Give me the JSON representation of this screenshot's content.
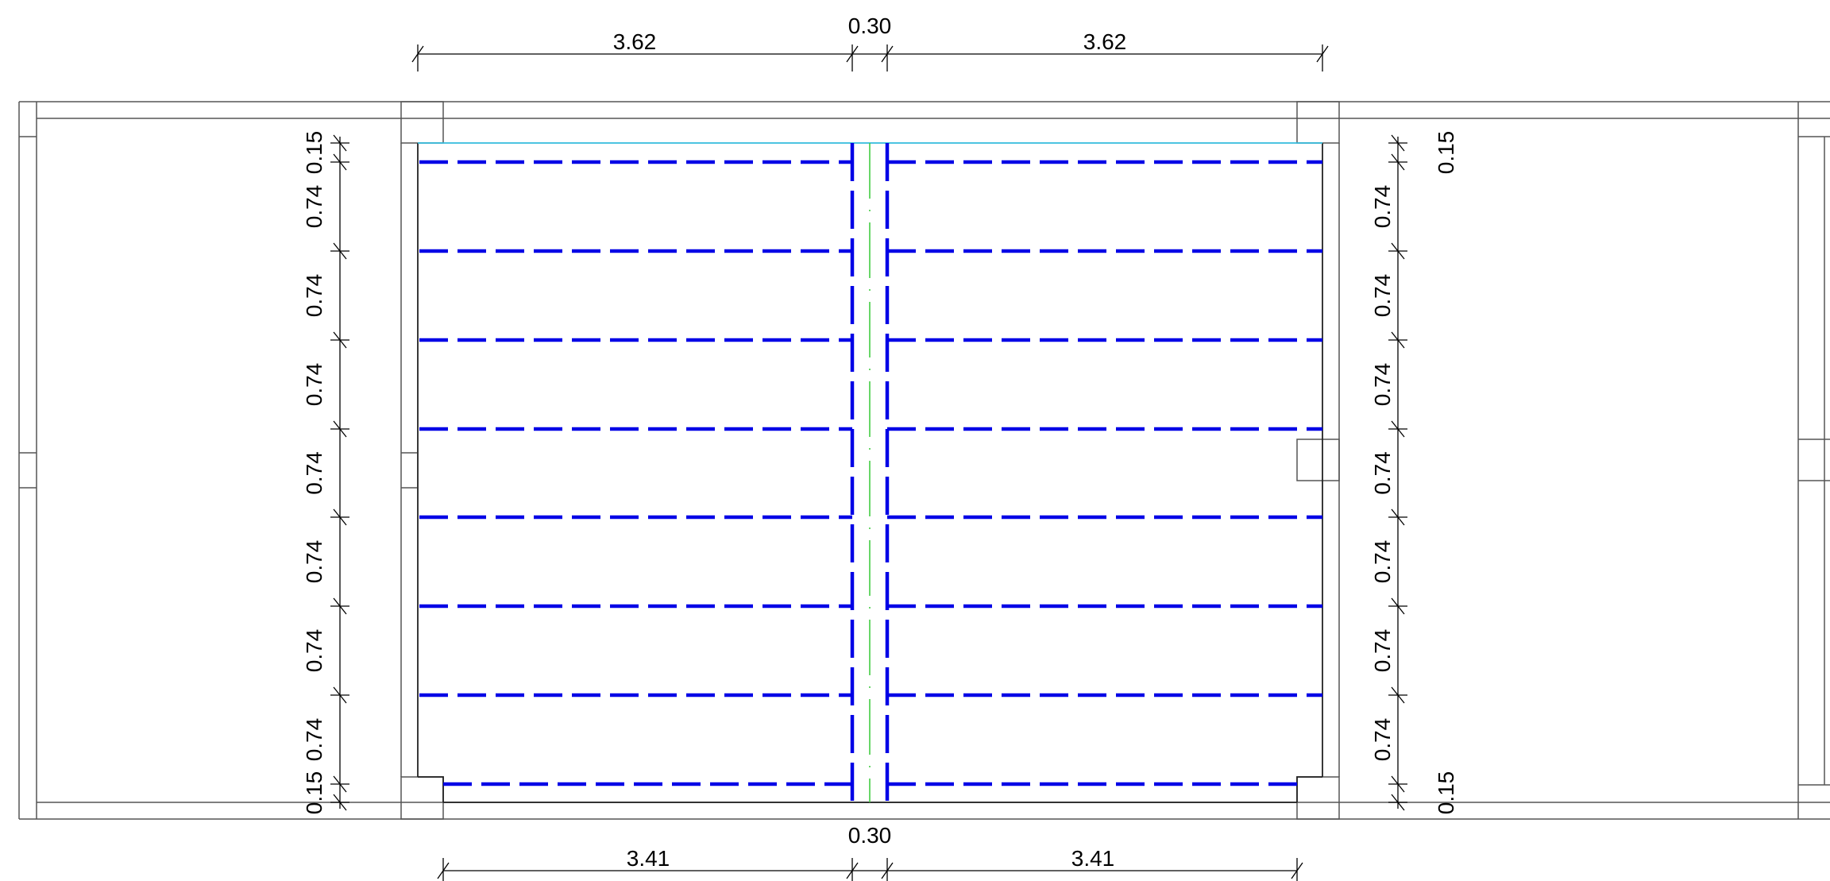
{
  "drawing": {
    "colors": {
      "outline": "#555555",
      "dimension": "#000000",
      "reinforcement": "#0000e6",
      "axis": "#44cc44",
      "edge_top": "#33bbdd"
    },
    "dimensions": {
      "top": {
        "left_span": "3.62",
        "gap": "0.30",
        "right_span": "3.62"
      },
      "bottom": {
        "left_span": "3.41",
        "gap": "0.30",
        "right_span": "3.41"
      },
      "left": {
        "edge_top": "0.15",
        "spacings": [
          "0.74",
          "0.74",
          "0.74",
          "0.74",
          "0.74",
          "0.74",
          "0.74"
        ],
        "edge_bottom": "0.15"
      },
      "right": {
        "edge_top": "0.15",
        "spacings": [
          "0.74",
          "0.74",
          "0.74",
          "0.74",
          "0.74",
          "0.74",
          "0.74"
        ],
        "edge_bottom": "0.15"
      }
    }
  }
}
